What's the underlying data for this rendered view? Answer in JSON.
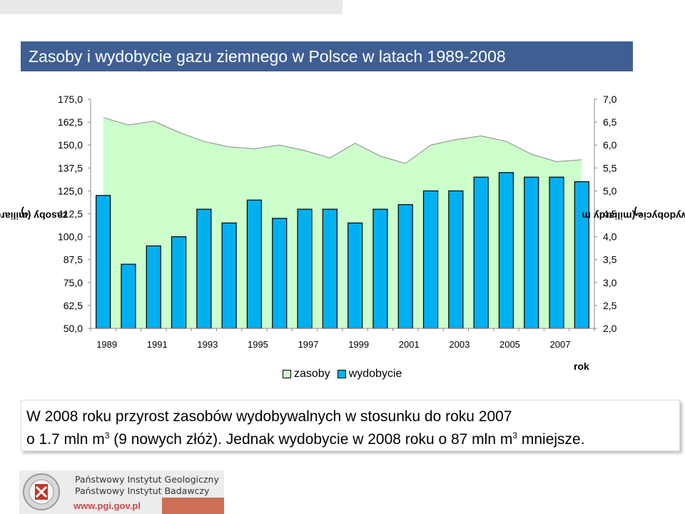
{
  "title": "Zasoby i wydobycie gazu ziemnego w Polsce w latach 1989-2008",
  "axes": {
    "ylabel_left": "zasoby (miliardy m",
    "ylabel_left_sup": "3",
    "ylabel_left_end": ")",
    "ylabel_right": "wydobycie (miliardy m",
    "ylabel_right_sup": "3",
    "ylabel_right_end": ")",
    "xlabel": "rok"
  },
  "legend": {
    "zasoby": "zasoby",
    "wydobycie": "wydobycie"
  },
  "caption": {
    "line1": "W 2008 roku przyrost zasobów wydobywalnych w stosunku do roku 2007",
    "line2a": "o 1.7 mln m",
    "line2_sup1": "3",
    "line2b": " (9 nowych złóż). Jednak wydobycie w 2008 roku o 87 mln m",
    "line2_sup2": "3",
    "line2c": " mniejsze."
  },
  "footer": {
    "line1": "Państwowy Instytut Geologiczny",
    "line2": "Państwowy Instytut Badawczy",
    "url": "www.pgi.gov.pl",
    "logo_icon": "pgi-logo-icon"
  },
  "colors": {
    "title_bg": "#3f5f94",
    "area_fill": "#ccffcc",
    "area_stroke": "#888888",
    "bar_fill": "#00b0f0",
    "bar_stroke": "#000000"
  },
  "chart_data": {
    "type": "bar+area",
    "years": [
      1989,
      1990,
      1991,
      1992,
      1993,
      1994,
      1995,
      1996,
      1997,
      1998,
      1999,
      2000,
      2001,
      2002,
      2003,
      2004,
      2005,
      2006,
      2007,
      2008
    ],
    "x_tick_labels": [
      "1989",
      "1991",
      "1993",
      "1995",
      "1997",
      "1999",
      "2001",
      "2003",
      "2005",
      "2007"
    ],
    "series": [
      {
        "name": "zasoby",
        "type": "area",
        "axis": "left",
        "values": [
          165,
          161,
          163,
          157,
          152,
          149,
          148,
          150,
          147,
          143,
          151,
          144,
          140,
          150,
          153,
          155,
          152,
          145,
          141,
          142
        ]
      },
      {
        "name": "wydobycie",
        "type": "bar",
        "axis": "right",
        "values": [
          4.9,
          3.4,
          3.8,
          4.0,
          4.6,
          4.3,
          4.8,
          4.4,
          4.6,
          4.6,
          4.3,
          4.6,
          4.7,
          5.0,
          5.0,
          5.3,
          5.4,
          5.3,
          5.3,
          5.2
        ]
      }
    ],
    "y_left": {
      "min": 50,
      "max": 175,
      "step": 12.5,
      "ticks": [
        "50,0",
        "62,5",
        "75,0",
        "87,5",
        "100,0",
        "112,5",
        "125,0",
        "137,5",
        "150,0",
        "162,5",
        "175,0"
      ]
    },
    "y_right": {
      "min": 2,
      "max": 7,
      "step": 0.5,
      "ticks": [
        "2,0",
        "2,5",
        "3,0",
        "3,5",
        "4,0",
        "4,5",
        "5,0",
        "5,5",
        "6,0",
        "6,5",
        "7,0"
      ]
    },
    "grid": false,
    "legend_position": "bottom"
  }
}
